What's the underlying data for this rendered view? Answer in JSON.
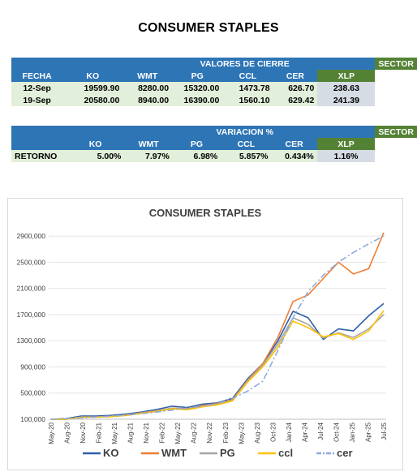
{
  "page_title": "CONSUMER STAPLES",
  "table1": {
    "group_header": "VALORES DE CIERRE",
    "sector_label": "SECTOR",
    "columns": [
      "FECHA",
      "KO",
      "WMT",
      "PG",
      "CCL",
      "CER",
      "XLP"
    ],
    "rows": [
      {
        "fecha": "12-Sep",
        "ko": "19599.90",
        "wmt": "8280.00",
        "pg": "15320.00",
        "ccl": "1473.78",
        "cer": "626.70",
        "xlp": "238.63"
      },
      {
        "fecha": "19-Sep",
        "ko": "20580.00",
        "wmt": "8940.00",
        "pg": "16390.00",
        "ccl": "1560.10",
        "cer": "629.42",
        "xlp": "241.39"
      }
    ]
  },
  "table2": {
    "group_header": "VARIACION %",
    "sector_label": "SECTOR",
    "columns": [
      "",
      "KO",
      "WMT",
      "PG",
      "CCL",
      "CER",
      "XLP"
    ],
    "row": {
      "label": "RETORNO",
      "ko": "5.00%",
      "wmt": "7.97%",
      "pg": "6.98%",
      "ccl": "5.857%",
      "cer": "0.434%",
      "xlp": "1.16%"
    }
  },
  "chart_data": {
    "type": "line",
    "title": "CONSUMER STAPLES",
    "xlabel": "",
    "ylabel": "",
    "ylim": [
      100000,
      3000000
    ],
    "y_ticks": [
      "100,000",
      "500,000",
      "900,000",
      "1300,000",
      "1700,000",
      "2100,000",
      "2500,000",
      "2900,000"
    ],
    "y_tick_values": [
      100000,
      500000,
      900000,
      1300000,
      1700000,
      2100000,
      2500000,
      2900000
    ],
    "x_ticks": [
      "May-20",
      "Aug-20",
      "Nov-20",
      "Feb-21",
      "May-21",
      "Aug-21",
      "Nov-21",
      "Feb-22",
      "May-22",
      "Aug-22",
      "Nov-22",
      "Feb-23",
      "May-23",
      "Aug-23",
      "Oct-23",
      "Jan-24",
      "Apr-24",
      "Jul-24",
      "Oct-24",
      "Jan-25",
      "Apr-25",
      "Jul-25"
    ],
    "grid": true,
    "legend_position": "bottom",
    "series": [
      {
        "name": "KO",
        "color": "#2e5fa8",
        "dash": "solid",
        "values": [
          100000,
          110000,
          150000,
          150000,
          160000,
          180000,
          210000,
          250000,
          300000,
          280000,
          330000,
          350000,
          420000,
          720000,
          950000,
          1300000,
          1750000,
          1650000,
          1320000,
          1480000,
          1450000,
          1680000,
          1870000
        ]
      },
      {
        "name": "WMT",
        "color": "#ed7d31",
        "dash": "solid",
        "values": [
          100000,
          100000,
          130000,
          135000,
          145000,
          165000,
          200000,
          230000,
          270000,
          260000,
          310000,
          340000,
          400000,
          700000,
          950000,
          1350000,
          1900000,
          2000000,
          2250000,
          2500000,
          2320000,
          2400000,
          2950000
        ]
      },
      {
        "name": "PG",
        "color": "#a5a5a5",
        "dash": "solid",
        "values": [
          100000,
          100000,
          135000,
          135000,
          145000,
          165000,
          195000,
          230000,
          270000,
          255000,
          300000,
          330000,
          390000,
          690000,
          930000,
          1250000,
          1650000,
          1550000,
          1340000,
          1420000,
          1350000,
          1480000,
          1700000
        ]
      },
      {
        "name": "ccl",
        "color": "#ffc000",
        "dash": "solid",
        "values": [
          100000,
          100000,
          130000,
          130000,
          140000,
          160000,
          190000,
          220000,
          260000,
          245000,
          290000,
          320000,
          380000,
          670000,
          900000,
          1200000,
          1600000,
          1500000,
          1360000,
          1410000,
          1320000,
          1450000,
          1760000
        ]
      },
      {
        "name": "cer",
        "color": "#8eaadb",
        "dash": "dashdot",
        "values": [
          100000,
          110000,
          120000,
          135000,
          150000,
          165000,
          185000,
          210000,
          240000,
          270000,
          300000,
          340000,
          420000,
          530000,
          680000,
          1150000,
          1650000,
          2050000,
          2300000,
          2500000,
          2650000,
          2780000,
          2900000
        ]
      }
    ]
  }
}
